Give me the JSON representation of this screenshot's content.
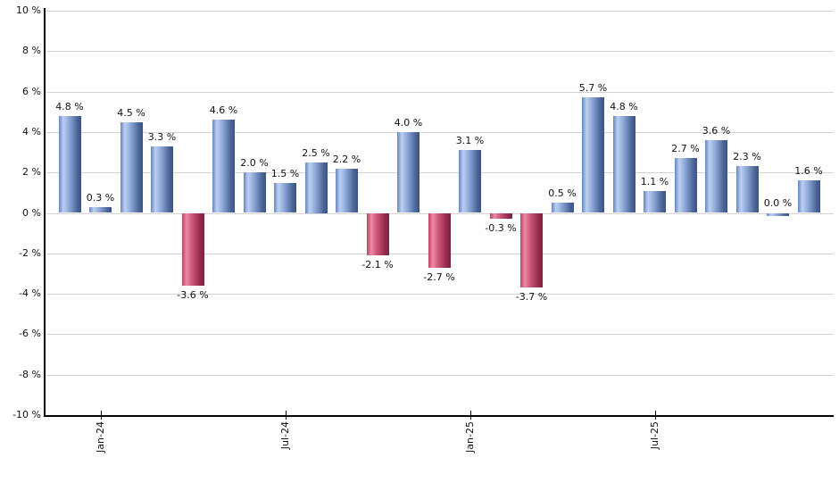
{
  "chart": {
    "background": "#ffffff",
    "grid_color": "#d4d4d4",
    "axis_color": "#000000",
    "text_color": "#111111",
    "positive_bar_gradient": [
      "#6487c2",
      "#bdd0f0",
      "#8da9da",
      "#4c6698",
      "#3a5383"
    ],
    "negative_bar_gradient": [
      "#bd4263",
      "#ec8ba5",
      "#cc5577",
      "#93294b",
      "#7e2040"
    ]
  },
  "chart_data": {
    "type": "bar",
    "title": "",
    "xlabel": "",
    "ylabel": "",
    "legend": false,
    "grid": true,
    "ylim": [
      -10,
      10
    ],
    "y_tick_step": 2,
    "values": [
      4.8,
      0.3,
      4.5,
      3.3,
      -3.6,
      4.6,
      2.0,
      1.5,
      2.5,
      2.2,
      -2.1,
      4.0,
      -2.7,
      3.1,
      -0.3,
      -3.7,
      0.5,
      5.7,
      4.8,
      1.1,
      2.7,
      3.6,
      2.3,
      0.0,
      1.6
    ],
    "bar_labels": [
      "4.8 %",
      "0.3 %",
      "4.5 %",
      "3.3 %",
      "-3.6 %",
      "4.6 %",
      "2.0 %",
      "1.5 %",
      "2.5 %",
      "2.2 %",
      "-2.1 %",
      "4.0 %",
      "-2.7 %",
      "3.1 %",
      "-0.3 %",
      "-3.7 %",
      "0.5 %",
      "5.7 %",
      "4.8 %",
      "1.1 %",
      "2.7 %",
      "3.6 %",
      "2.3 %",
      "0.0 %",
      "1.6 %"
    ],
    "x_ticks": [
      {
        "label": "Jan-24",
        "bar_index": 1
      },
      {
        "label": "Jul-24",
        "bar_index": 7
      },
      {
        "label": "Jan-25",
        "bar_index": 13
      },
      {
        "label": "Jul-25",
        "bar_index": 19
      }
    ],
    "y_ticks": [
      {
        "label": "10 %",
        "value": 10
      },
      {
        "label": "8 %",
        "value": 8
      },
      {
        "label": "6 %",
        "value": 6
      },
      {
        "label": "4 %",
        "value": 4
      },
      {
        "label": "2 %",
        "value": 2
      },
      {
        "label": "0 %",
        "value": 0
      },
      {
        "label": "-2 %",
        "value": -2
      },
      {
        "label": "-4 %",
        "value": -4
      },
      {
        "label": "-6 %",
        "value": -6
      },
      {
        "label": "-8 %",
        "value": -8
      },
      {
        "label": "-10 %",
        "value": -10
      }
    ]
  }
}
